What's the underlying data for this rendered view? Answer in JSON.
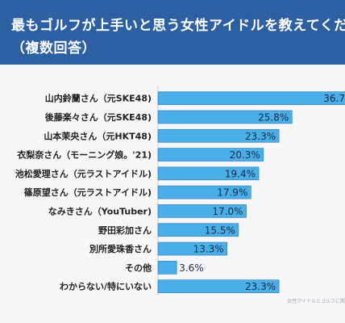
{
  "header": {
    "title_line1": "最もゴルフが上手いと思う女性アイドルを教えてくださ",
    "title_line2": "（複数回答）"
  },
  "source_text": "女性アイドルとゴルフに関",
  "colors": {
    "banner": "#2d5fa3",
    "bar": "#4aaee8",
    "bar_edge": "#2a78b8",
    "background": "#f7f7f9"
  },
  "chart_data": {
    "type": "bar",
    "orientation": "horizontal",
    "categories": [
      "山内鈴蘭さん（元SKE48)",
      "後藤楽々さん（元SKE48)",
      "山本茉央さん（元HKT48)",
      "衣梨奈さん（モーニング娘。'21)",
      "池松愛理さん（元ラストアイドル)",
      "篠原望さん（元ラストアイドル)",
      "なみきさん（YouTuber)",
      "野田彩加さん",
      "別所愛珠香さん",
      "その他",
      "わからない/特にいない"
    ],
    "values": [
      36.7,
      25.8,
      23.3,
      20.3,
      19.4,
      17.9,
      17.0,
      15.5,
      13.3,
      3.6,
      23.3
    ],
    "value_labels": [
      "36.7",
      "25.8%",
      "23.3%",
      "20.3%",
      "19.4%",
      "17.9%",
      "17.0%",
      "15.5%",
      "13.3%",
      "3.6%",
      "23.3%"
    ],
    "xlim": [
      0,
      36
    ],
    "grid": false,
    "legend": "none"
  }
}
